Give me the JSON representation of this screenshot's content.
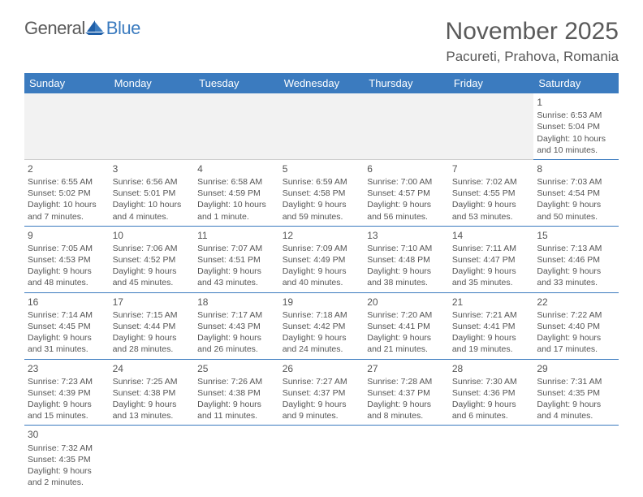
{
  "brand": {
    "part1": "General",
    "part2": "Blue"
  },
  "title": "November 2025",
  "location": "Pacureti, Prahova, Romania",
  "colors": {
    "header_bg": "#3b7bbf",
    "header_text": "#ffffff",
    "text": "#555555",
    "rule": "#3b7bbf"
  },
  "weekdays": [
    "Sunday",
    "Monday",
    "Tuesday",
    "Wednesday",
    "Thursday",
    "Friday",
    "Saturday"
  ],
  "weeks": [
    [
      null,
      null,
      null,
      null,
      null,
      null,
      {
        "n": "1",
        "sunrise": "Sunrise: 6:53 AM",
        "sunset": "Sunset: 5:04 PM",
        "day": "Daylight: 10 hours and 10 minutes."
      }
    ],
    [
      {
        "n": "2",
        "sunrise": "Sunrise: 6:55 AM",
        "sunset": "Sunset: 5:02 PM",
        "day": "Daylight: 10 hours and 7 minutes."
      },
      {
        "n": "3",
        "sunrise": "Sunrise: 6:56 AM",
        "sunset": "Sunset: 5:01 PM",
        "day": "Daylight: 10 hours and 4 minutes."
      },
      {
        "n": "4",
        "sunrise": "Sunrise: 6:58 AM",
        "sunset": "Sunset: 4:59 PM",
        "day": "Daylight: 10 hours and 1 minute."
      },
      {
        "n": "5",
        "sunrise": "Sunrise: 6:59 AM",
        "sunset": "Sunset: 4:58 PM",
        "day": "Daylight: 9 hours and 59 minutes."
      },
      {
        "n": "6",
        "sunrise": "Sunrise: 7:00 AM",
        "sunset": "Sunset: 4:57 PM",
        "day": "Daylight: 9 hours and 56 minutes."
      },
      {
        "n": "7",
        "sunrise": "Sunrise: 7:02 AM",
        "sunset": "Sunset: 4:55 PM",
        "day": "Daylight: 9 hours and 53 minutes."
      },
      {
        "n": "8",
        "sunrise": "Sunrise: 7:03 AM",
        "sunset": "Sunset: 4:54 PM",
        "day": "Daylight: 9 hours and 50 minutes."
      }
    ],
    [
      {
        "n": "9",
        "sunrise": "Sunrise: 7:05 AM",
        "sunset": "Sunset: 4:53 PM",
        "day": "Daylight: 9 hours and 48 minutes."
      },
      {
        "n": "10",
        "sunrise": "Sunrise: 7:06 AM",
        "sunset": "Sunset: 4:52 PM",
        "day": "Daylight: 9 hours and 45 minutes."
      },
      {
        "n": "11",
        "sunrise": "Sunrise: 7:07 AM",
        "sunset": "Sunset: 4:51 PM",
        "day": "Daylight: 9 hours and 43 minutes."
      },
      {
        "n": "12",
        "sunrise": "Sunrise: 7:09 AM",
        "sunset": "Sunset: 4:49 PM",
        "day": "Daylight: 9 hours and 40 minutes."
      },
      {
        "n": "13",
        "sunrise": "Sunrise: 7:10 AM",
        "sunset": "Sunset: 4:48 PM",
        "day": "Daylight: 9 hours and 38 minutes."
      },
      {
        "n": "14",
        "sunrise": "Sunrise: 7:11 AM",
        "sunset": "Sunset: 4:47 PM",
        "day": "Daylight: 9 hours and 35 minutes."
      },
      {
        "n": "15",
        "sunrise": "Sunrise: 7:13 AM",
        "sunset": "Sunset: 4:46 PM",
        "day": "Daylight: 9 hours and 33 minutes."
      }
    ],
    [
      {
        "n": "16",
        "sunrise": "Sunrise: 7:14 AM",
        "sunset": "Sunset: 4:45 PM",
        "day": "Daylight: 9 hours and 31 minutes."
      },
      {
        "n": "17",
        "sunrise": "Sunrise: 7:15 AM",
        "sunset": "Sunset: 4:44 PM",
        "day": "Daylight: 9 hours and 28 minutes."
      },
      {
        "n": "18",
        "sunrise": "Sunrise: 7:17 AM",
        "sunset": "Sunset: 4:43 PM",
        "day": "Daylight: 9 hours and 26 minutes."
      },
      {
        "n": "19",
        "sunrise": "Sunrise: 7:18 AM",
        "sunset": "Sunset: 4:42 PM",
        "day": "Daylight: 9 hours and 24 minutes."
      },
      {
        "n": "20",
        "sunrise": "Sunrise: 7:20 AM",
        "sunset": "Sunset: 4:41 PM",
        "day": "Daylight: 9 hours and 21 minutes."
      },
      {
        "n": "21",
        "sunrise": "Sunrise: 7:21 AM",
        "sunset": "Sunset: 4:41 PM",
        "day": "Daylight: 9 hours and 19 minutes."
      },
      {
        "n": "22",
        "sunrise": "Sunrise: 7:22 AM",
        "sunset": "Sunset: 4:40 PM",
        "day": "Daylight: 9 hours and 17 minutes."
      }
    ],
    [
      {
        "n": "23",
        "sunrise": "Sunrise: 7:23 AM",
        "sunset": "Sunset: 4:39 PM",
        "day": "Daylight: 9 hours and 15 minutes."
      },
      {
        "n": "24",
        "sunrise": "Sunrise: 7:25 AM",
        "sunset": "Sunset: 4:38 PM",
        "day": "Daylight: 9 hours and 13 minutes."
      },
      {
        "n": "25",
        "sunrise": "Sunrise: 7:26 AM",
        "sunset": "Sunset: 4:38 PM",
        "day": "Daylight: 9 hours and 11 minutes."
      },
      {
        "n": "26",
        "sunrise": "Sunrise: 7:27 AM",
        "sunset": "Sunset: 4:37 PM",
        "day": "Daylight: 9 hours and 9 minutes."
      },
      {
        "n": "27",
        "sunrise": "Sunrise: 7:28 AM",
        "sunset": "Sunset: 4:37 PM",
        "day": "Daylight: 9 hours and 8 minutes."
      },
      {
        "n": "28",
        "sunrise": "Sunrise: 7:30 AM",
        "sunset": "Sunset: 4:36 PM",
        "day": "Daylight: 9 hours and 6 minutes."
      },
      {
        "n": "29",
        "sunrise": "Sunrise: 7:31 AM",
        "sunset": "Sunset: 4:35 PM",
        "day": "Daylight: 9 hours and 4 minutes."
      }
    ],
    [
      {
        "n": "30",
        "sunrise": "Sunrise: 7:32 AM",
        "sunset": "Sunset: 4:35 PM",
        "day": "Daylight: 9 hours and 2 minutes."
      },
      null,
      null,
      null,
      null,
      null,
      null
    ]
  ]
}
